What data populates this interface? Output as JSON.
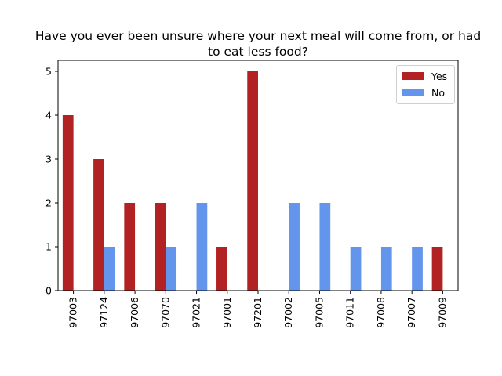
{
  "chart_data": {
    "type": "bar",
    "title": "Have you ever been unsure where your next meal will come from, or had to eat less food?",
    "title_lines": [
      "Have you ever been unsure where your next meal will come from, or had",
      "to eat less food?"
    ],
    "categories": [
      "97003",
      "97124",
      "97006",
      "97070",
      "97021",
      "97001",
      "97201",
      "97002",
      "97005",
      "97011",
      "97008",
      "97007",
      "97009"
    ],
    "series": [
      {
        "name": "Yes",
        "color": "#b22222",
        "values": [
          4,
          3,
          2,
          2,
          0,
          1,
          5,
          0,
          0,
          0,
          0,
          0,
          1
        ]
      },
      {
        "name": "No",
        "color": "#6495ed",
        "values": [
          0,
          1,
          0,
          1,
          2,
          0,
          0,
          2,
          2,
          1,
          1,
          1,
          0
        ]
      }
    ],
    "ylim": [
      0,
      5.25
    ],
    "yticks": [
      0,
      1,
      2,
      3,
      4,
      5
    ],
    "xlabel": "",
    "ylabel": "",
    "grid": false,
    "legend_position": "top-right"
  }
}
